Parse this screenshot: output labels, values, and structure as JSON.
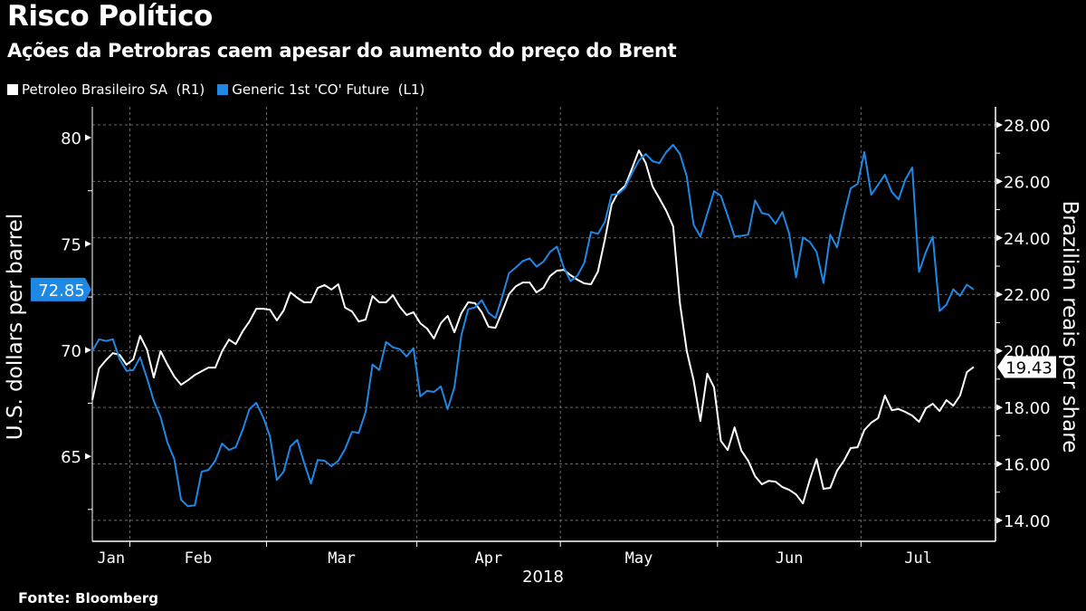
{
  "header": {
    "title": "Risco Político",
    "subtitle": "Ações da Petrobras caem apesar do aumento do preço do Brent"
  },
  "legend": [
    {
      "label": "Petroleo Brasileiro SA  (R1)",
      "color": "#ffffff"
    },
    {
      "label": "Generic 1st 'CO' Future  (L1)",
      "color": "#1e88e5"
    }
  ],
  "footer": {
    "source_label": "Fonte:",
    "source_name": "Bloomberg"
  },
  "chart_data": {
    "type": "line",
    "title": "Risco Político",
    "subtitle": "Ações da Petrobras caem apesar do aumento do preço do Brent",
    "xlabel": "2018",
    "x_tick_labels": [
      "Jan",
      "Feb",
      "Mar",
      "Apr",
      "May",
      "Jun",
      "Jul"
    ],
    "year_label": "2018",
    "left_axis": {
      "label": "U.S. dollars per barrel",
      "ticks": [
        "80",
        "75",
        "70",
        "65"
      ],
      "tick_values": [
        80,
        75,
        70,
        65
      ],
      "minor_step": 2.5,
      "range": [
        61.0,
        81.45
      ]
    },
    "right_axis": {
      "label": "Brazilian reais per share",
      "ticks": [
        "28.00",
        "26.00",
        "24.00",
        "22.00",
        "20.00",
        "18.00",
        "16.00",
        "14.00"
      ],
      "tick_values": [
        28,
        26,
        24,
        22,
        20,
        18,
        16,
        14
      ],
      "range": [
        13.26,
        28.64
      ]
    },
    "grid": true,
    "legend_position": "top-left",
    "dates": [
      "2018-01-24",
      "2018-01-25",
      "2018-01-26",
      "2018-01-29",
      "2018-01-30",
      "2018-01-31",
      "2018-02-01",
      "2018-02-02",
      "2018-02-05",
      "2018-02-06",
      "2018-02-07",
      "2018-02-08",
      "2018-02-09",
      "2018-02-12",
      "2018-02-13",
      "2018-02-14",
      "2018-02-15",
      "2018-02-16",
      "2018-02-19",
      "2018-02-20",
      "2018-02-21",
      "2018-02-22",
      "2018-02-23",
      "2018-02-26",
      "2018-02-27",
      "2018-02-28",
      "2018-03-01",
      "2018-03-02",
      "2018-03-05",
      "2018-03-06",
      "2018-03-07",
      "2018-03-08",
      "2018-03-09",
      "2018-03-12",
      "2018-03-13",
      "2018-03-14",
      "2018-03-15",
      "2018-03-16",
      "2018-03-19",
      "2018-03-20",
      "2018-03-21",
      "2018-03-22",
      "2018-03-23",
      "2018-03-26",
      "2018-03-27",
      "2018-03-28",
      "2018-03-29",
      "2018-03-30",
      "2018-04-02",
      "2018-04-03",
      "2018-04-04",
      "2018-04-05",
      "2018-04-06",
      "2018-04-09",
      "2018-04-10",
      "2018-04-11",
      "2018-04-12",
      "2018-04-13",
      "2018-04-16",
      "2018-04-17",
      "2018-04-18",
      "2018-04-19",
      "2018-04-20",
      "2018-04-23",
      "2018-04-24",
      "2018-04-25",
      "2018-04-26",
      "2018-04-27",
      "2018-04-30",
      "2018-05-01",
      "2018-05-02",
      "2018-05-03",
      "2018-05-04",
      "2018-05-07",
      "2018-05-08",
      "2018-05-09",
      "2018-05-10",
      "2018-05-11",
      "2018-05-14",
      "2018-05-15",
      "2018-05-16",
      "2018-05-17",
      "2018-05-18",
      "2018-05-21",
      "2018-05-22",
      "2018-05-23",
      "2018-05-24",
      "2018-05-25",
      "2018-05-28",
      "2018-05-29",
      "2018-05-30",
      "2018-05-31",
      "2018-06-01",
      "2018-06-04",
      "2018-06-05",
      "2018-06-06",
      "2018-06-07",
      "2018-06-08",
      "2018-06-11",
      "2018-06-12",
      "2018-06-13",
      "2018-06-14",
      "2018-06-15",
      "2018-06-18",
      "2018-06-19",
      "2018-06-20",
      "2018-06-21",
      "2018-06-22",
      "2018-06-25",
      "2018-06-26",
      "2018-06-27",
      "2018-06-28",
      "2018-06-29",
      "2018-07-02",
      "2018-07-03",
      "2018-07-04",
      "2018-07-05",
      "2018-07-06",
      "2018-07-09",
      "2018-07-10",
      "2018-07-11",
      "2018-07-12",
      "2018-07-13",
      "2018-07-16",
      "2018-07-17",
      "2018-07-18",
      "2018-07-19",
      "2018-07-20",
      "2018-07-23",
      "2018-07-24"
    ],
    "series": [
      {
        "name": "Petroleo Brasileiro SA (R1)",
        "axis": "right",
        "color": "#ffffff",
        "last_value_label": "19.43",
        "values": [
          18.26,
          19.38,
          19.67,
          19.92,
          19.86,
          19.51,
          19.7,
          20.53,
          20.05,
          19.06,
          19.99,
          19.51,
          19.09,
          18.8,
          18.96,
          19.15,
          19.28,
          19.41,
          19.41,
          19.99,
          20.4,
          20.24,
          20.69,
          21.04,
          21.49,
          21.49,
          21.46,
          21.08,
          21.43,
          22.07,
          21.88,
          21.72,
          21.72,
          22.23,
          22.33,
          22.17,
          22.36,
          21.53,
          21.4,
          21.04,
          21.11,
          21.94,
          21.72,
          21.72,
          21.97,
          21.56,
          21.27,
          21.37,
          20.98,
          20.79,
          20.44,
          20.98,
          21.24,
          20.66,
          21.33,
          21.72,
          21.69,
          21.37,
          20.85,
          20.82,
          21.4,
          22.01,
          22.29,
          22.42,
          22.42,
          22.07,
          22.23,
          22.65,
          22.84,
          22.87,
          22.68,
          22.52,
          22.39,
          22.36,
          22.81,
          23.93,
          25.18,
          25.63,
          25.85,
          26.46,
          27.1,
          26.65,
          25.82,
          25.4,
          24.96,
          24.41,
          21.69,
          19.99,
          18.96,
          17.52,
          19.19,
          18.71,
          16.81,
          16.49,
          17.29,
          16.46,
          16.11,
          15.56,
          15.28,
          15.4,
          15.37,
          15.18,
          15.08,
          14.92,
          14.6,
          15.44,
          16.17,
          15.12,
          15.15,
          15.76,
          16.11,
          16.56,
          16.59,
          17.2,
          17.46,
          17.62,
          18.42,
          17.9,
          17.94,
          17.84,
          17.71,
          17.49,
          17.97,
          18.13,
          17.87,
          18.26,
          18.06,
          18.42,
          19.25,
          19.43
        ]
      },
      {
        "name": "Generic 1st 'CO' Future (L1)",
        "axis": "left",
        "color": "#1e88e5",
        "last_value_label": "72.85",
        "values": [
          69.96,
          70.51,
          70.43,
          70.51,
          69.57,
          69.02,
          69.06,
          69.66,
          68.68,
          67.61,
          66.84,
          65.64,
          64.87,
          62.95,
          62.65,
          62.69,
          64.27,
          64.36,
          64.79,
          65.6,
          65.3,
          65.43,
          66.24,
          67.22,
          67.52,
          66.84,
          65.94,
          63.89,
          64.27,
          65.47,
          65.77,
          64.7,
          63.72,
          64.83,
          64.79,
          64.53,
          64.79,
          65.34,
          66.15,
          66.11,
          67.09,
          69.32,
          69.06,
          70.38,
          70.13,
          70.04,
          69.7,
          70.09,
          67.82,
          68.08,
          68.03,
          68.29,
          67.22,
          68.25,
          70.68,
          71.92,
          72.01,
          72.35,
          71.75,
          71.5,
          72.52,
          73.63,
          73.89,
          74.19,
          74.32,
          73.93,
          74.15,
          74.62,
          74.87,
          73.89,
          73.25,
          73.5,
          74.1,
          75.56,
          75.47,
          76.03,
          77.31,
          77.35,
          77.65,
          78.33,
          78.93,
          79.23,
          78.89,
          78.8,
          79.32,
          79.66,
          79.23,
          78.16,
          75.9,
          75.34,
          76.41,
          77.48,
          77.26,
          76.32,
          75.34,
          75.38,
          75.43,
          77.05,
          76.45,
          76.37,
          75.94,
          76.5,
          75.47,
          73.42,
          75.3,
          75.09,
          74.62,
          73.16,
          75.43,
          74.83,
          76.32,
          77.61,
          77.82,
          79.32,
          77.31,
          77.78,
          78.25,
          77.44,
          77.09,
          78.03,
          78.59,
          73.68,
          74.62,
          75.34,
          71.84,
          72.14,
          72.86,
          72.56,
          73.08,
          72.85
        ]
      }
    ]
  }
}
